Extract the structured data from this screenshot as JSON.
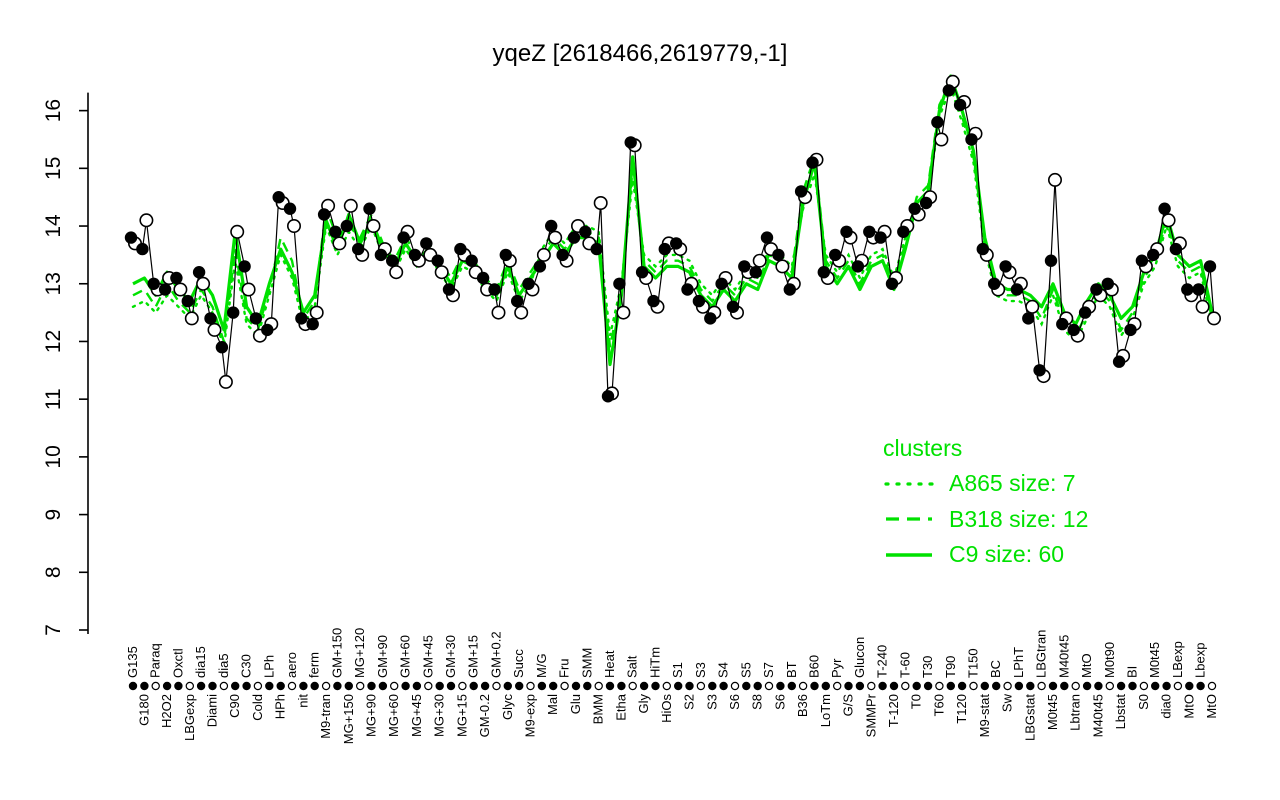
{
  "colors": {
    "cluster_green": "#00e100",
    "series_black": "#000000",
    "background": "#ffffff"
  },
  "legend": {
    "title": "clusters",
    "entries": [
      {
        "label": "A865 size: 7",
        "style": "dotted"
      },
      {
        "label": "B318 size: 12",
        "style": "dashed"
      },
      {
        "label": "C9 size: 60",
        "style": "solid"
      }
    ]
  },
  "chart_data": {
    "type": "line",
    "title": "yqeZ [2618466,2619779,-1]",
    "xlabel": "",
    "ylabel": "",
    "ylim": [
      7,
      16.6
    ],
    "yticks": [
      7,
      8,
      9,
      10,
      11,
      12,
      13,
      14,
      15,
      16
    ],
    "grid": false,
    "legend_position": "right-middle",
    "categories": [
      "G135",
      "G180",
      "Paraq",
      "H2O2",
      "Oxctl",
      "LBGexp",
      "dia15",
      "Diami",
      "dia5",
      "C90",
      "C30",
      "Cold",
      "LPh",
      "HPh",
      "aero",
      "nit",
      "ferm",
      "M9-tran",
      "GM+150",
      "MG+150",
      "MG+120",
      "MG+90",
      "GM+90",
      "MG+60",
      "GM+60",
      "MG+45",
      "GM+45",
      "MG+30",
      "GM+30",
      "MG+15",
      "GM+15",
      "GM-0.2",
      "GM+0.2",
      "Glyc",
      "Succ",
      "M9-exp",
      "M/G",
      "Mal",
      "Fru",
      "Glu",
      "SMM",
      "BMM",
      "Heat",
      "Etha",
      "Salt",
      "Gly",
      "HiTm",
      "HiOs",
      "S1",
      "S2",
      "S3",
      "S3",
      "S4",
      "S6",
      "S5",
      "S8",
      "S7",
      "S6",
      "BT",
      "B36",
      "B60",
      "LoTm",
      "Pyr",
      "G/S",
      "Glucon",
      "SMMPr",
      "T-240",
      "T-120",
      "T-60",
      "T0",
      "T30",
      "T60",
      "T90",
      "T120",
      "T150",
      "M9-stat",
      "BC",
      "Sw",
      "LPhT",
      "LBGstat",
      "LBGtran",
      "M0t45",
      "M40t45",
      "Lbtran",
      "MtO",
      "M40t45",
      "M0t90",
      "Lbstat",
      "BI",
      "S0",
      "M0t45",
      "dia0",
      "LBexp",
      "MtO",
      "Lbexp",
      "MtO"
    ],
    "tick_dot_filled": [
      1,
      1,
      0,
      1,
      1,
      0,
      1,
      1,
      0,
      1,
      1,
      0,
      1,
      1,
      0,
      1,
      1,
      0,
      1,
      1,
      0,
      1,
      1,
      0,
      1,
      1,
      0,
      1,
      1,
      0,
      1,
      1,
      0,
      1,
      1,
      0,
      1,
      1,
      0,
      1,
      1,
      0,
      1,
      1,
      0,
      1,
      1,
      0,
      1,
      1,
      0,
      1,
      1,
      0,
      1,
      1,
      0,
      1,
      1,
      0,
      1,
      1,
      0,
      1,
      1,
      0,
      1,
      1,
      0,
      1,
      1,
      0,
      1,
      1,
      0,
      1,
      1,
      0,
      1,
      1,
      0,
      1,
      1,
      0,
      1,
      1,
      0,
      1,
      1,
      0,
      1,
      1,
      0,
      1,
      1,
      0
    ],
    "series": [
      {
        "name": "gene samples (filled)",
        "role": "points",
        "marker": "filled-circle",
        "color": "#000000",
        "values": [
          13.8,
          13.6,
          13.0,
          12.9,
          13.1,
          12.7,
          13.2,
          12.4,
          11.9,
          12.5,
          13.3,
          12.4,
          12.2,
          14.5,
          14.3,
          12.4,
          12.3,
          14.2,
          13.9,
          14.0,
          13.6,
          14.3,
          13.5,
          13.4,
          13.8,
          13.5,
          13.7,
          13.4,
          12.9,
          13.6,
          13.4,
          13.1,
          12.9,
          13.5,
          12.7,
          13.0,
          13.3,
          14.0,
          13.5,
          13.8,
          13.9,
          13.6,
          11.05,
          13.0,
          15.45,
          13.2,
          12.7,
          13.6,
          13.7,
          12.9,
          12.7,
          12.4,
          13.0,
          12.6,
          13.3,
          13.2,
          13.8,
          13.5,
          12.9,
          14.6,
          15.1,
          13.2,
          13.5,
          13.9,
          13.3,
          13.9,
          13.8,
          13.0,
          13.9,
          14.3,
          14.4,
          15.8,
          16.35,
          16.1,
          15.5,
          13.6,
          13.0,
          13.3,
          12.9,
          12.4,
          11.5,
          13.4,
          12.3,
          12.2,
          12.5,
          12.9,
          13.0,
          11.65,
          12.2,
          13.4,
          13.5,
          14.3,
          13.6,
          12.9,
          12.9,
          13.3
        ]
      },
      {
        "name": "gene samples (open)",
        "role": "points",
        "marker": "open-circle",
        "color": "#000000",
        "values": [
          13.7,
          14.1,
          12.9,
          13.1,
          12.9,
          12.4,
          13.0,
          12.2,
          11.3,
          13.9,
          12.9,
          12.1,
          12.3,
          14.4,
          14.0,
          12.3,
          12.5,
          14.35,
          13.7,
          14.35,
          13.5,
          14.0,
          13.6,
          13.2,
          13.9,
          13.4,
          13.5,
          13.2,
          12.8,
          13.5,
          13.2,
          12.9,
          12.5,
          13.4,
          12.5,
          12.9,
          13.5,
          13.8,
          13.4,
          14.0,
          13.7,
          14.4,
          11.1,
          12.5,
          15.4,
          13.1,
          12.6,
          13.7,
          13.6,
          13.0,
          12.6,
          12.5,
          13.1,
          12.5,
          13.2,
          13.4,
          13.6,
          13.3,
          13.0,
          14.5,
          15.15,
          13.1,
          13.4,
          13.8,
          13.4,
          13.8,
          13.9,
          13.1,
          14.0,
          14.2,
          14.5,
          15.5,
          16.5,
          16.15,
          15.6,
          13.5,
          12.9,
          13.2,
          13.0,
          12.6,
          11.4,
          14.8,
          12.4,
          12.1,
          12.6,
          12.8,
          12.9,
          11.75,
          12.3,
          13.3,
          13.6,
          14.1,
          13.7,
          12.8,
          12.6,
          12.4
        ]
      },
      {
        "name": "A865",
        "role": "cluster",
        "style": "dotted",
        "color": "#00e100",
        "values": [
          12.6,
          12.7,
          12.5,
          12.8,
          12.6,
          12.4,
          12.8,
          12.5,
          11.9,
          13.4,
          12.3,
          12.1,
          12.8,
          13.5,
          13.1,
          12.3,
          12.6,
          14.0,
          13.5,
          13.9,
          13.6,
          14.0,
          13.5,
          13.2,
          13.6,
          13.3,
          13.5,
          13.2,
          12.9,
          13.3,
          13.2,
          12.9,
          12.7,
          13.2,
          12.7,
          13.0,
          13.6,
          13.9,
          13.7,
          14.0,
          14.0,
          13.9,
          12.1,
          13.0,
          14.8,
          13.5,
          13.3,
          13.5,
          13.5,
          13.4,
          13.0,
          12.8,
          13.1,
          12.9,
          13.2,
          13.1,
          13.6,
          13.5,
          13.3,
          14.3,
          14.9,
          13.5,
          13.2,
          13.5,
          13.1,
          13.5,
          13.6,
          13.1,
          13.8,
          14.3,
          14.5,
          15.9,
          16.4,
          15.8,
          15.1,
          13.6,
          12.8,
          12.7,
          12.7,
          12.6,
          12.3,
          12.8,
          12.2,
          12.0,
          12.4,
          12.8,
          12.6,
          12.1,
          12.4,
          13.0,
          13.3,
          14.0,
          13.3,
          13.1,
          13.2,
          12.3
        ]
      },
      {
        "name": "B318",
        "role": "cluster",
        "style": "dashed",
        "color": "#00e100",
        "values": [
          12.8,
          12.9,
          12.6,
          13.0,
          12.7,
          12.5,
          12.9,
          12.6,
          12.0,
          13.6,
          12.4,
          12.2,
          12.9,
          13.8,
          13.4,
          12.4,
          12.7,
          14.3,
          13.8,
          14.0,
          13.8,
          14.2,
          13.7,
          13.4,
          13.8,
          13.5,
          13.7,
          13.4,
          13.1,
          13.5,
          13.4,
          13.1,
          12.9,
          13.4,
          12.9,
          13.2,
          13.5,
          13.8,
          13.6,
          13.9,
          13.9,
          13.8,
          11.9,
          12.9,
          15.0,
          13.4,
          13.2,
          13.4,
          13.4,
          13.3,
          12.9,
          12.7,
          13.0,
          12.8,
          13.1,
          13.0,
          13.5,
          13.4,
          13.2,
          14.6,
          15.2,
          13.4,
          13.1,
          13.4,
          13.0,
          13.4,
          13.5,
          13.0,
          13.7,
          14.5,
          14.7,
          16.1,
          16.5,
          15.9,
          15.2,
          13.7,
          12.9,
          12.8,
          12.8,
          12.7,
          12.4,
          12.9,
          12.3,
          12.1,
          12.5,
          12.9,
          12.7,
          12.2,
          12.5,
          13.1,
          13.4,
          14.1,
          13.4,
          13.2,
          13.3,
          12.4
        ]
      },
      {
        "name": "C9",
        "role": "cluster",
        "style": "solid",
        "color": "#00e100",
        "values": [
          13.0,
          13.1,
          12.8,
          13.2,
          12.9,
          12.7,
          13.1,
          12.8,
          12.2,
          13.9,
          12.6,
          12.3,
          13.0,
          13.6,
          13.2,
          12.5,
          12.8,
          14.1,
          13.6,
          14.2,
          13.7,
          14.1,
          13.6,
          13.3,
          13.7,
          13.4,
          13.6,
          13.3,
          13.0,
          13.4,
          13.3,
          13.0,
          12.8,
          13.3,
          12.8,
          13.1,
          13.4,
          13.7,
          13.5,
          13.8,
          13.8,
          13.7,
          11.6,
          12.8,
          15.2,
          13.3,
          13.1,
          13.3,
          13.3,
          13.2,
          12.8,
          12.6,
          12.9,
          12.7,
          13.0,
          12.9,
          13.4,
          13.3,
          13.1,
          14.4,
          15.1,
          13.3,
          13.0,
          13.3,
          12.9,
          13.3,
          13.4,
          12.9,
          13.6,
          14.4,
          14.6,
          16.0,
          16.6,
          16.0,
          15.3,
          13.8,
          13.0,
          12.9,
          12.9,
          12.8,
          12.6,
          13.0,
          12.5,
          12.3,
          12.7,
          13.0,
          12.8,
          12.4,
          12.6,
          13.2,
          13.5,
          14.2,
          13.5,
          13.3,
          13.4,
          12.5
        ]
      }
    ]
  }
}
